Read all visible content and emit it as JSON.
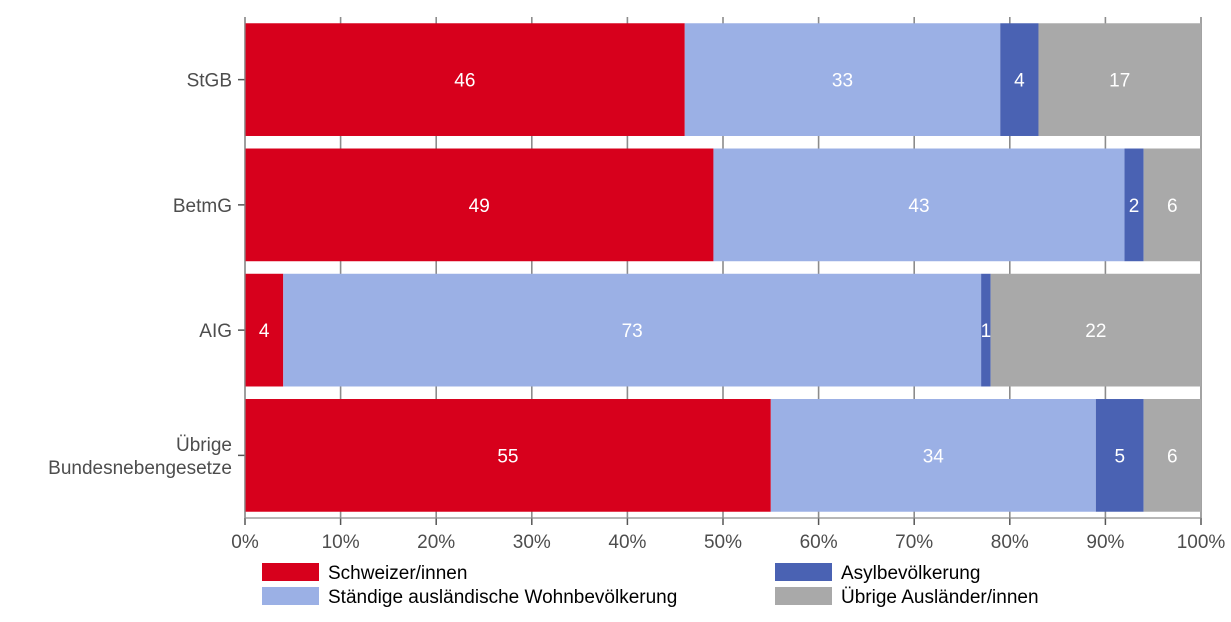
{
  "chart_data": {
    "type": "bar",
    "orientation": "horizontal",
    "stacked": true,
    "categories": [
      [
        "StGB"
      ],
      [
        "BetmG"
      ],
      [
        "AIG"
      ],
      [
        "Übrige",
        "Bundesnebengesetze"
      ]
    ],
    "series": [
      {
        "name": "Schweizer/innen",
        "values": [
          46,
          49,
          4,
          55
        ],
        "color": "#d7001c"
      },
      {
        "name": "Ständige ausländische Wohnbevölkerung",
        "values": [
          33,
          43,
          73,
          34
        ],
        "color": "#9bb0e5"
      },
      {
        "name": "Asylbevölkerung",
        "values": [
          4,
          2,
          1,
          5
        ],
        "color": "#4a62b3"
      },
      {
        "name": "Übrige Ausländer/innen",
        "values": [
          17,
          6,
          22,
          6
        ],
        "color": "#a9a9a9"
      }
    ],
    "x_ticks": [
      0,
      10,
      20,
      30,
      40,
      50,
      60,
      70,
      80,
      90,
      100
    ],
    "x_tick_labels": [
      "0%",
      "10%",
      "20%",
      "30%",
      "40%",
      "50%",
      "60%",
      "70%",
      "80%",
      "90%",
      "100%"
    ],
    "xlim": [
      0,
      100
    ],
    "title": "",
    "xlabel": "",
    "ylabel": "",
    "grid": true,
    "legend_position": "bottom",
    "label_color": "#ffffff",
    "axis_text_color": "#4d4d4d",
    "gridline_color": "#8c8c8c"
  }
}
